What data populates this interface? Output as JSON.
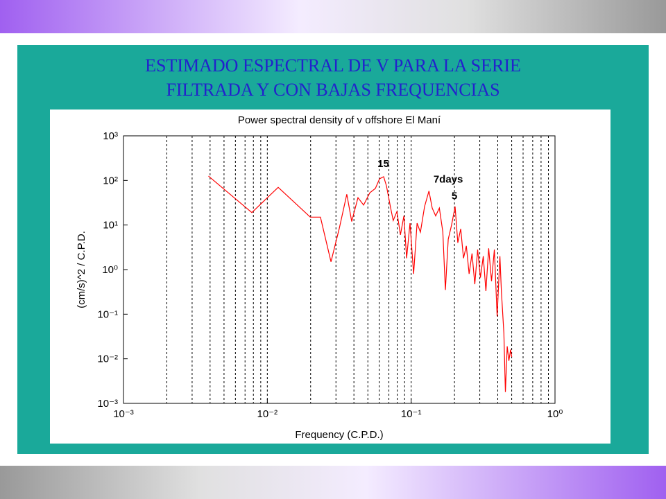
{
  "heading": [
    "ESTIMADO ESPECTRAL DE V PARA LA SERIE",
    "FILTRADA Y CON BAJAS FREQUENCIAS"
  ],
  "chart_data": {
    "type": "line",
    "title": "Power spectral density of v  offshore El Maní",
    "x_label": "Frequency (C.P.D.)",
    "y_label": "(cm/s)^2 / C.P.D.",
    "log_x": true,
    "log_y": true,
    "grid": "x",
    "xlim": [
      0.001,
      1
    ],
    "ylim": [
      0.001,
      1000
    ],
    "xticks": [
      {
        "value": 0.001,
        "label": "10⁻³"
      },
      {
        "value": 0.01,
        "label": "10⁻²"
      },
      {
        "value": 0.1,
        "label": "10⁻¹"
      },
      {
        "value": 1,
        "label": "10⁰"
      }
    ],
    "xminorticks": [
      0.002,
      0.003,
      0.004,
      0.005,
      0.006,
      0.007,
      0.008,
      0.009,
      0.02,
      0.03,
      0.04,
      0.05,
      0.06,
      0.07,
      0.08,
      0.09,
      0.2,
      0.3,
      0.4,
      0.5,
      0.6,
      0.7,
      0.8,
      0.9
    ],
    "yticks": [
      {
        "value": 1000,
        "label": "10³"
      },
      {
        "value": 100,
        "label": "10²"
      },
      {
        "value": 10,
        "label": "10¹"
      },
      {
        "value": 1,
        "label": "10⁰"
      },
      {
        "value": 0.1,
        "label": "10⁻¹"
      },
      {
        "value": 0.01,
        "label": "10⁻²"
      },
      {
        "value": 0.001,
        "label": "10⁻³"
      }
    ],
    "x": [
      0.0039,
      0.0078,
      0.0119,
      0.0199,
      0.0234,
      0.0277,
      0.0316,
      0.0357,
      0.0386,
      0.0427,
      0.0467,
      0.0516,
      0.0564,
      0.0603,
      0.0644,
      0.0673,
      0.072,
      0.075,
      0.0796,
      0.0842,
      0.089,
      0.093,
      0.0982,
      0.104,
      0.11,
      0.116,
      0.124,
      0.133,
      0.14,
      0.148,
      0.157,
      0.166,
      0.173,
      0.181,
      0.191,
      0.202,
      0.211,
      0.221,
      0.231,
      0.242,
      0.253,
      0.265,
      0.277,
      0.29,
      0.303,
      0.317,
      0.331,
      0.346,
      0.362,
      0.379,
      0.396,
      0.414,
      0.424,
      0.441,
      0.452,
      0.465,
      0.478,
      0.491,
      0.5
    ],
    "series": [
      {
        "color": "#ff0000",
        "values": [
          125,
          19,
          70,
          15,
          15,
          1.5,
          8.2,
          49,
          12,
          41,
          28,
          53,
          66,
          109,
          121,
          76,
          24,
          12.6,
          20,
          6,
          16,
          1.8,
          11,
          0.8,
          11,
          6.9,
          26,
          58,
          24,
          16,
          24,
          7,
          0.35,
          4.8,
          10,
          26,
          4,
          8.2,
          1.8,
          3.4,
          0.8,
          2.3,
          0.47,
          2.8,
          0.66,
          2,
          0.33,
          3,
          0.55,
          2.8,
          0.09,
          2,
          0.33,
          0.038,
          0.0018,
          0.019,
          0.009,
          0.016,
          0.011
        ]
      }
    ],
    "annotations": [
      {
        "text": "15",
        "x": 0.064,
        "y": 200
      },
      {
        "text": "7days",
        "x": 0.181,
        "y": 90
      },
      {
        "text": "5",
        "x": 0.2,
        "y": 38
      }
    ]
  }
}
